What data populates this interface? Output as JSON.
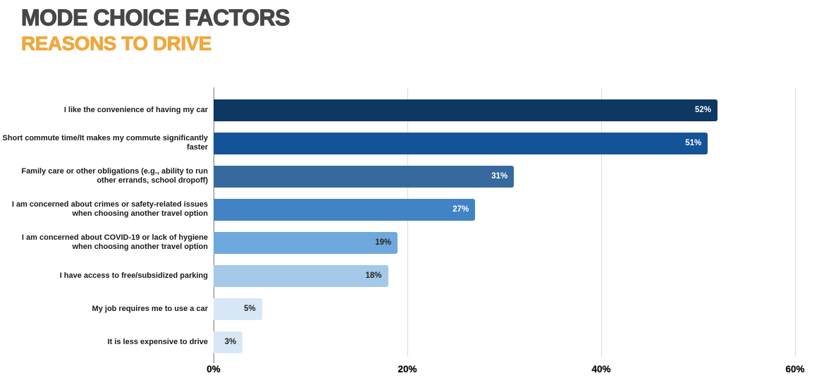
{
  "header": {
    "title": "MODE CHOICE FACTORS",
    "subtitle": "REASONS TO DRIVE",
    "title_color": "#474747",
    "subtitle_color": "#EFA73C"
  },
  "chart_data": {
    "type": "bar",
    "orientation": "horizontal",
    "title": "MODE CHOICE FACTORS",
    "subtitle": "REASONS TO DRIVE",
    "xlabel": "",
    "ylabel": "",
    "x_range": [
      0,
      60
    ],
    "x_ticks": [
      "0%",
      "20%",
      "40%",
      "60%"
    ],
    "grid": true,
    "legend": false,
    "axis_color": "#757575",
    "gridline_color": "#DCDCDC",
    "bars": [
      {
        "category": "I like the convenience of having my car",
        "value": 52,
        "value_label": "52%",
        "color": "#0E3862",
        "value_label_color": "#FFFFFF"
      },
      {
        "category": "Short commute time/It makes my commute significantly faster",
        "value": 51,
        "value_label": "51%",
        "color": "#155399",
        "value_label_color": "#FFFFFF"
      },
      {
        "category": "Family care or other obligations (e.g., ability to run other errands, school dropoff)",
        "value": 31,
        "value_label": "31%",
        "color": "#366A9E",
        "value_label_color": "#FFFFFF"
      },
      {
        "category": "I am concerned about crimes or safety-related issues when choosing another travel option",
        "value": 27,
        "value_label": "27%",
        "color": "#4183C4",
        "value_label_color": "#FFFFFF"
      },
      {
        "category": "I am concerned about COVID-19 or lack of hygiene when choosing another travel option",
        "value": 19,
        "value_label": "19%",
        "color": "#6FA8DC",
        "value_label_color": "#262626"
      },
      {
        "category": "I have access to free/subsidized parking",
        "value": 18,
        "value_label": "18%",
        "color": "#A4C9E9",
        "value_label_color": "#262626"
      },
      {
        "category": "My job requires me to use a car",
        "value": 5,
        "value_label": "5%",
        "color": "#D8E7F6",
        "value_label_color": "#262626"
      },
      {
        "category": "It is less expensive to drive",
        "value": 3,
        "value_label": "3%",
        "color": "#D8E7F6",
        "value_label_color": "#262626"
      }
    ]
  }
}
